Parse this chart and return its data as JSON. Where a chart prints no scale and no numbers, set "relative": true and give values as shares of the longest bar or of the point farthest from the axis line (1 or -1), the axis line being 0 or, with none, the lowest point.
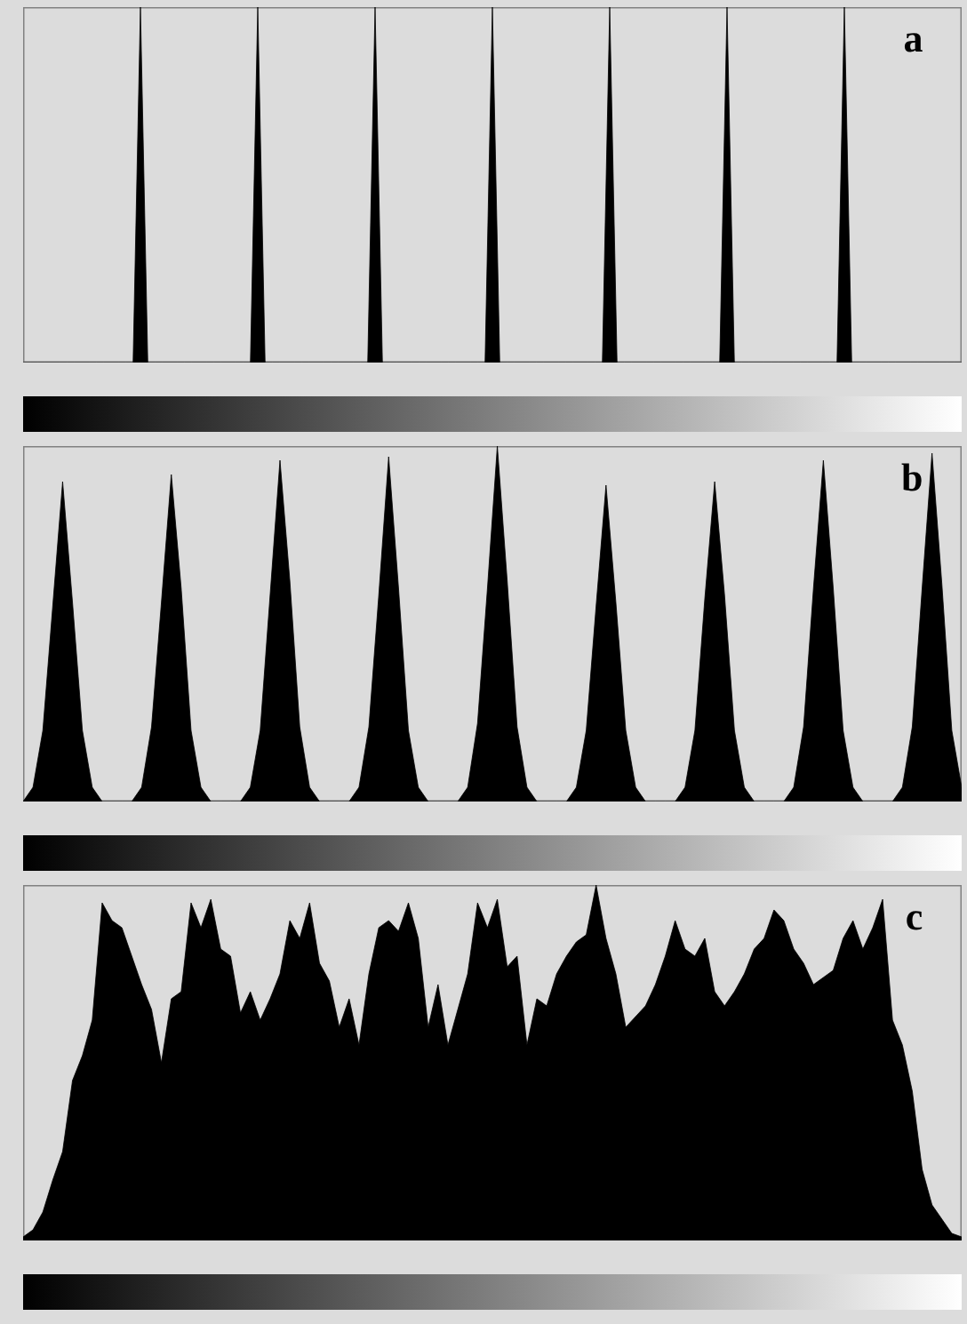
{
  "chart_data": [
    {
      "type": "area",
      "title": "a",
      "relative": true,
      "color": "#000000",
      "categories": [
        null,
        null,
        null,
        null,
        null,
        null,
        null,
        null,
        null,
        null,
        null,
        null,
        null,
        null,
        null,
        null,
        null,
        null,
        null,
        null,
        null,
        null,
        null,
        null,
        null,
        null,
        null,
        null,
        null,
        null,
        null,
        null,
        null,
        null,
        null,
        null,
        null,
        null,
        null,
        null,
        null,
        null,
        null,
        null,
        null,
        null,
        null,
        null,
        null,
        null,
        null,
        null,
        null,
        null,
        null,
        null,
        null,
        null,
        null,
        null,
        null,
        null,
        null,
        null,
        null,
        null,
        null,
        null,
        null,
        null,
        null,
        null,
        null,
        null,
        null,
        null,
        null,
        null,
        null,
        null,
        null,
        null,
        null,
        null,
        null,
        null,
        null,
        null,
        null,
        null,
        null,
        null,
        null,
        null,
        null,
        null,
        null,
        null,
        null,
        null,
        null,
        null,
        null,
        null,
        null,
        null,
        null,
        null,
        null,
        null,
        null,
        null,
        null,
        null,
        null,
        null,
        null,
        null,
        null,
        null,
        null,
        null,
        null,
        null,
        null,
        null,
        null,
        null,
        null
      ],
      "values": [
        0,
        0,
        0,
        0,
        0,
        0,
        0,
        0,
        0,
        0,
        0,
        0,
        0,
        0,
        0,
        0,
        1,
        0,
        0,
        0,
        0,
        0,
        0,
        0,
        0,
        0,
        0,
        0,
        0,
        0,
        0,
        0,
        1,
        0,
        0,
        0,
        0,
        0,
        0,
        0,
        0,
        0,
        0,
        0,
        0,
        0,
        0,
        0,
        1,
        0,
        0,
        0,
        0,
        0,
        0,
        0,
        0,
        0,
        0,
        0,
        0,
        0,
        0,
        0,
        1,
        0,
        0,
        0,
        0,
        0,
        0,
        0,
        0,
        0,
        0,
        0,
        0,
        0,
        0,
        0,
        1,
        0,
        0,
        0,
        0,
        0,
        0,
        0,
        0,
        0,
        0,
        0,
        0,
        0,
        0,
        0,
        1,
        0,
        0,
        0,
        0,
        0,
        0,
        0,
        0,
        0,
        0,
        0,
        0,
        0,
        0,
        0,
        1,
        0,
        0,
        0,
        0,
        0,
        0,
        0,
        0,
        0,
        0,
        0,
        0,
        0,
        0,
        0,
        0
      ]
    },
    {
      "type": "area",
      "title": "b",
      "relative": true,
      "color": "#000000",
      "categories": [
        null,
        null,
        null,
        null,
        null,
        null,
        null,
        null,
        null,
        null,
        null,
        null,
        null,
        null,
        null,
        null,
        null,
        null,
        null,
        null,
        null,
        null,
        null,
        null,
        null,
        null,
        null,
        null,
        null,
        null,
        null,
        null,
        null,
        null,
        null,
        null,
        null,
        null,
        null,
        null,
        null,
        null,
        null,
        null,
        null,
        null,
        null,
        null,
        null,
        null,
        null,
        null,
        null,
        null,
        null,
        null,
        null,
        null,
        null,
        null,
        null,
        null,
        null,
        null,
        null,
        null,
        null,
        null,
        null,
        null,
        null,
        null,
        null,
        null,
        null,
        null,
        null,
        null,
        null,
        null,
        null,
        null,
        null,
        null,
        null,
        null,
        null,
        null,
        null,
        null,
        null,
        null,
        null,
        null,
        null,
        null
      ],
      "values": [
        0,
        0.04,
        0.2,
        0.55,
        0.9,
        0.56,
        0.2,
        0.04,
        0,
        0,
        0,
        0,
        0.04,
        0.21,
        0.56,
        0.92,
        0.6,
        0.2,
        0.04,
        0,
        0,
        0,
        0,
        0.04,
        0.2,
        0.58,
        0.96,
        0.62,
        0.21,
        0.04,
        0,
        0,
        0,
        0,
        0.04,
        0.21,
        0.58,
        0.97,
        0.6,
        0.2,
        0.04,
        0,
        0,
        0,
        0,
        0.04,
        0.22,
        0.6,
        1,
        0.62,
        0.21,
        0.04,
        0,
        0,
        0,
        0,
        0.04,
        0.2,
        0.55,
        0.89,
        0.56,
        0.2,
        0.04,
        0,
        0,
        0,
        0,
        0.04,
        0.2,
        0.57,
        0.9,
        0.58,
        0.2,
        0.04,
        0,
        0,
        0,
        0,
        0.04,
        0.21,
        0.6,
        0.96,
        0.6,
        0.2,
        0.04,
        0,
        0,
        0,
        0,
        0.04,
        0.21,
        0.6,
        0.98,
        0.61,
        0.2,
        0.04
      ]
    },
    {
      "type": "area",
      "title": "c",
      "relative": true,
      "color": "#000000",
      "categories": [
        null,
        null,
        null,
        null,
        null,
        null,
        null,
        null,
        null,
        null,
        null,
        null,
        null,
        null,
        null,
        null,
        null,
        null,
        null,
        null,
        null,
        null,
        null,
        null,
        null,
        null,
        null,
        null,
        null,
        null,
        null,
        null,
        null,
        null,
        null,
        null,
        null,
        null,
        null,
        null,
        null,
        null,
        null,
        null,
        null,
        null,
        null,
        null,
        null,
        null,
        null,
        null,
        null,
        null,
        null,
        null,
        null,
        null,
        null,
        null,
        null,
        null,
        null,
        null,
        null,
        null,
        null,
        null,
        null,
        null,
        null,
        null,
        null,
        null,
        null,
        null,
        null,
        null,
        null,
        null,
        null,
        null,
        null,
        null,
        null,
        null,
        null,
        null,
        null,
        null,
        null,
        null,
        null,
        null,
        null,
        null
      ],
      "values": [
        0.01,
        0.03,
        0.08,
        0.17,
        0.25,
        0.45,
        0.52,
        0.62,
        0.95,
        0.9,
        0.88,
        0.8,
        0.72,
        0.65,
        0.5,
        0.68,
        0.7,
        0.95,
        0.88,
        0.96,
        0.82,
        0.8,
        0.64,
        0.7,
        0.62,
        0.68,
        0.75,
        0.9,
        0.85,
        0.95,
        0.78,
        0.73,
        0.6,
        0.68,
        0.55,
        0.75,
        0.88,
        0.9,
        0.87,
        0.95,
        0.85,
        0.6,
        0.72,
        0.55,
        0.65,
        0.75,
        0.95,
        0.88,
        0.96,
        0.77,
        0.8,
        0.55,
        0.68,
        0.66,
        0.75,
        0.8,
        0.84,
        0.86,
        1,
        0.85,
        0.75,
        0.6,
        0.63,
        0.66,
        0.72,
        0.8,
        0.9,
        0.82,
        0.8,
        0.85,
        0.7,
        0.66,
        0.7,
        0.75,
        0.82,
        0.85,
        0.93,
        0.9,
        0.82,
        0.78,
        0.72,
        0.74,
        0.76,
        0.85,
        0.9,
        0.82,
        0.88,
        0.96,
        0.62,
        0.55,
        0.42,
        0.2,
        0.1,
        0.06,
        0.02,
        0.01
      ]
    }
  ]
}
